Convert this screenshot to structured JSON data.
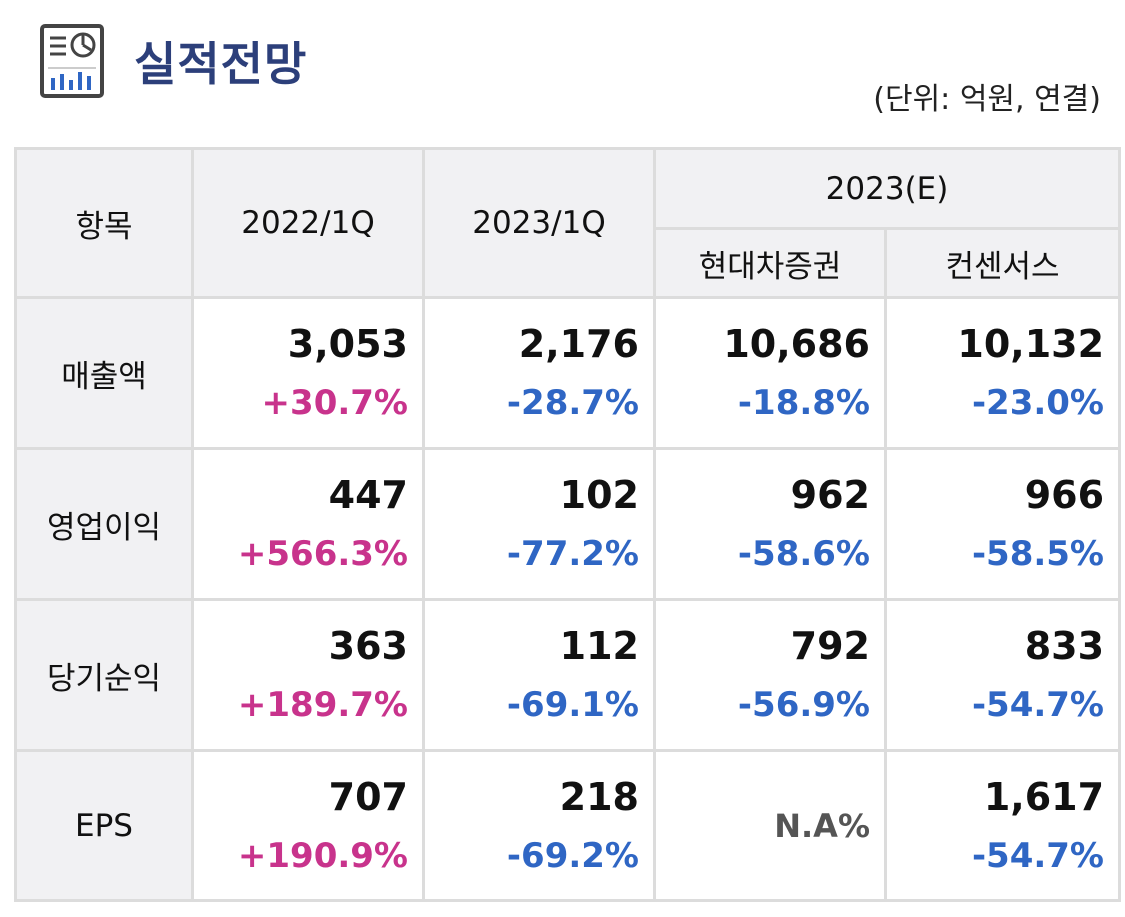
{
  "header": {
    "title": "실적전망",
    "unit_note": "(단위: 억원, 연결)",
    "icon": "report-chart-icon"
  },
  "table": {
    "headers": {
      "item": "항목",
      "col1": "2022/1Q",
      "col2": "2023/1Q",
      "group": "2023(E)",
      "col3": "현대차증권",
      "col4": "컨센서스"
    },
    "rows": [
      {
        "label": "매출액",
        "cells": [
          {
            "value": "3,053",
            "change": "+30.7%"
          },
          {
            "value": "2,176",
            "change": "-28.7%"
          },
          {
            "value": "10,686",
            "change": "-18.8%"
          },
          {
            "value": "10,132",
            "change": "-23.0%"
          }
        ]
      },
      {
        "label": "영업이익",
        "cells": [
          {
            "value": "447",
            "change": "+566.3%"
          },
          {
            "value": "102",
            "change": "-77.2%"
          },
          {
            "value": "962",
            "change": "-58.6%"
          },
          {
            "value": "966",
            "change": "-58.5%"
          }
        ]
      },
      {
        "label": "당기순익",
        "cells": [
          {
            "value": "363",
            "change": "+189.7%"
          },
          {
            "value": "112",
            "change": "-69.1%"
          },
          {
            "value": "792",
            "change": "-56.9%"
          },
          {
            "value": "833",
            "change": "-54.7%"
          }
        ]
      },
      {
        "label": "EPS",
        "cells": [
          {
            "value": "707",
            "change": "+190.9%"
          },
          {
            "value": "218",
            "change": "-69.2%"
          },
          {
            "value": "N.A%",
            "change": ""
          },
          {
            "value": "1,617",
            "change": "-54.7%"
          }
        ]
      }
    ]
  },
  "colors": {
    "title": "#2c3f7a",
    "positive": "#c8338c",
    "negative": "#2f66c4",
    "header_bg": "#f1f1f3",
    "border": "#dcdcdc"
  }
}
